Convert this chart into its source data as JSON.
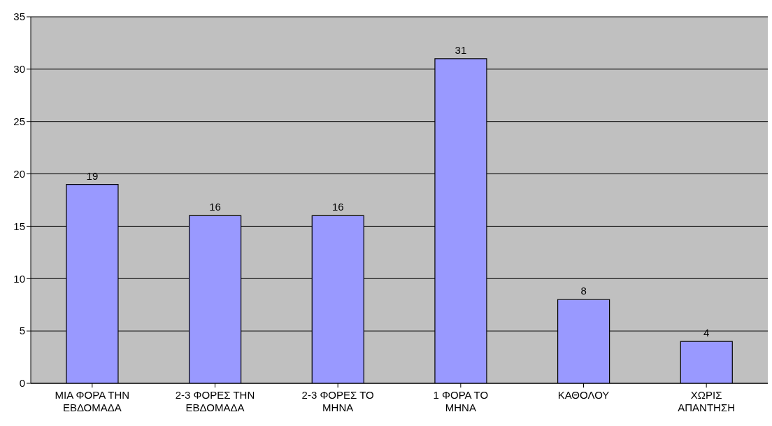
{
  "chart_data": {
    "type": "bar",
    "categories": [
      "ΜΙΑ ΦΟΡΑ ΤΗΝ ΕΒΔΟΜΑΔΑ",
      "2-3 ΦΟΡΕΣ ΤΗΝ ΕΒΔΟΜΑΔΑ",
      "2-3 ΦΟΡΕΣ ΤΟ ΜΗΝΑ",
      "1 ΦΟΡΑ ΤΟ ΜΗΝΑ",
      "ΚΑΘΟΛΟΥ",
      "ΧΩΡΙΣ ΑΠΑΝΤΗΣΗ"
    ],
    "values": [
      19,
      16,
      16,
      31,
      8,
      4
    ],
    "color": "#9999ff",
    "ylim": [
      0,
      35
    ],
    "yticks": [
      0,
      5,
      10,
      15,
      20,
      25,
      30,
      35
    ],
    "grid": "y",
    "data_labels": true
  }
}
